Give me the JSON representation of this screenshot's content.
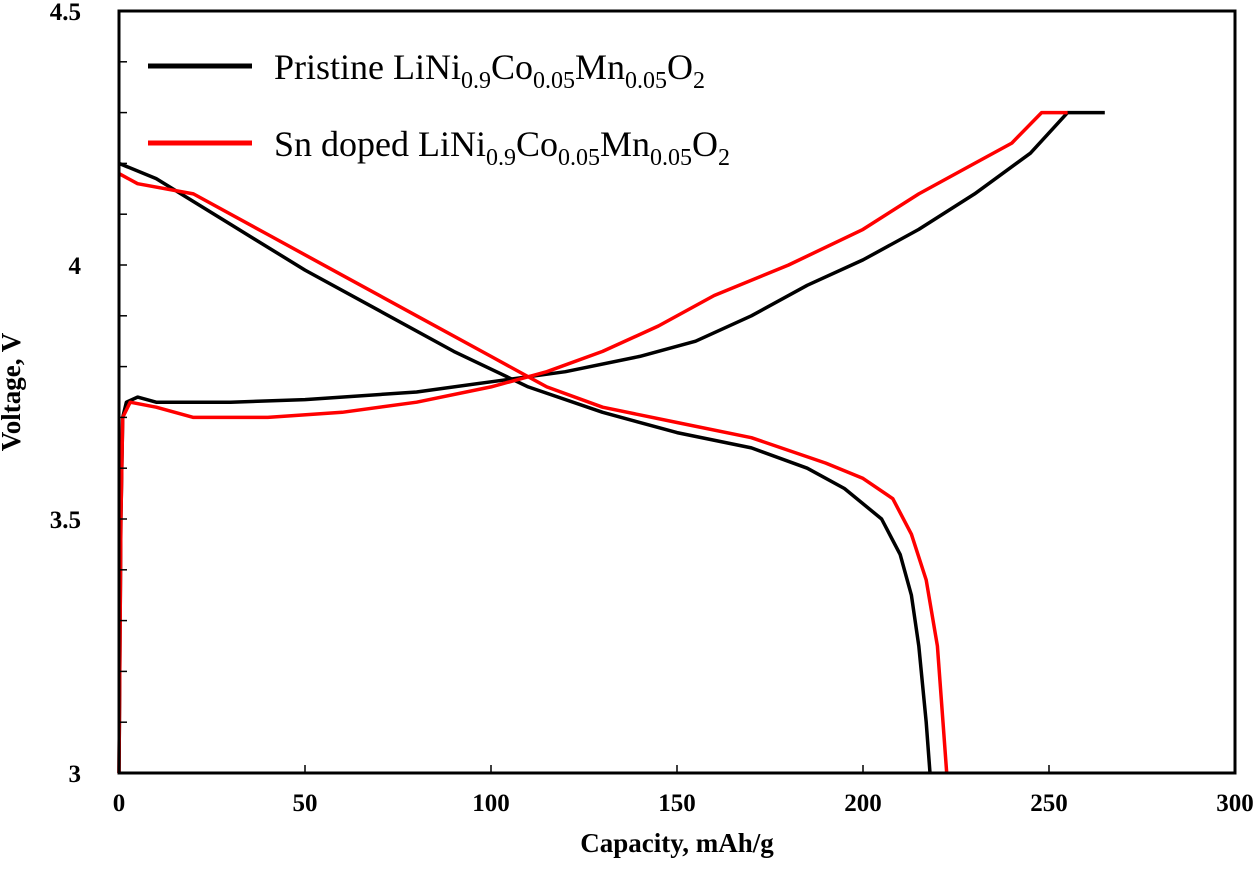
{
  "chart_data": {
    "type": "line",
    "title": "",
    "xlabel": "Capacity, mAh/g",
    "ylabel": "Voltage, V",
    "xlim": [
      0,
      300
    ],
    "ylim": [
      3,
      4.5
    ],
    "xticks": [
      "0",
      "50",
      "100",
      "150",
      "200",
      "250",
      "300"
    ],
    "yticks": [
      "3",
      "3.5",
      "4",
      "4.5"
    ],
    "grid": false,
    "legend_position": "top-left",
    "series": [
      {
        "name": "Pristine LiNi0.9Co0.05Mn0.05O2",
        "legend_parts": [
          [
            "Pristine LiNi",
            ""
          ],
          [
            "0.9",
            "sub"
          ],
          [
            "Co",
            ""
          ],
          [
            "0.05",
            "sub"
          ],
          [
            "Mn",
            ""
          ],
          [
            "0.05",
            "sub"
          ],
          [
            "O",
            ""
          ],
          [
            "2",
            "sub"
          ]
        ],
        "color": "#000000",
        "charge": [
          [
            0,
            3.0
          ],
          [
            0.5,
            3.5
          ],
          [
            1,
            3.7
          ],
          [
            2,
            3.73
          ],
          [
            5,
            3.74
          ],
          [
            10,
            3.73
          ],
          [
            30,
            3.73
          ],
          [
            50,
            3.735
          ],
          [
            80,
            3.75
          ],
          [
            100,
            3.77
          ],
          [
            120,
            3.79
          ],
          [
            140,
            3.82
          ],
          [
            155,
            3.85
          ],
          [
            170,
            3.9
          ],
          [
            185,
            3.96
          ],
          [
            200,
            4.01
          ],
          [
            215,
            4.07
          ],
          [
            230,
            4.14
          ],
          [
            245,
            4.22
          ],
          [
            255,
            4.3
          ],
          [
            265,
            4.3
          ]
        ],
        "discharge": [
          [
            0,
            4.2
          ],
          [
            10,
            4.17
          ],
          [
            30,
            4.08
          ],
          [
            50,
            3.99
          ],
          [
            70,
            3.91
          ],
          [
            90,
            3.83
          ],
          [
            110,
            3.76
          ],
          [
            130,
            3.71
          ],
          [
            150,
            3.67
          ],
          [
            170,
            3.64
          ],
          [
            185,
            3.6
          ],
          [
            195,
            3.56
          ],
          [
            205,
            3.5
          ],
          [
            210,
            3.43
          ],
          [
            213,
            3.35
          ],
          [
            215,
            3.25
          ],
          [
            217,
            3.1
          ],
          [
            218,
            3.0
          ]
        ]
      },
      {
        "name": "Sn doped LiNi0.9Co0.05Mn0.05O2",
        "legend_parts": [
          [
            "Sn doped LiNi",
            ""
          ],
          [
            "0.9",
            "sub"
          ],
          [
            "Co",
            ""
          ],
          [
            "0.05",
            "sub"
          ],
          [
            "Mn",
            ""
          ],
          [
            "0.05",
            "sub"
          ],
          [
            "O",
            ""
          ],
          [
            "2",
            "sub"
          ]
        ],
        "color": "#ff0000",
        "charge": [
          [
            0,
            3.0
          ],
          [
            0.5,
            3.5
          ],
          [
            1,
            3.7
          ],
          [
            3,
            3.73
          ],
          [
            10,
            3.72
          ],
          [
            20,
            3.7
          ],
          [
            40,
            3.7
          ],
          [
            60,
            3.71
          ],
          [
            80,
            3.73
          ],
          [
            100,
            3.76
          ],
          [
            115,
            3.79
          ],
          [
            130,
            3.83
          ],
          [
            145,
            3.88
          ],
          [
            160,
            3.94
          ],
          [
            180,
            4.0
          ],
          [
            200,
            4.07
          ],
          [
            215,
            4.14
          ],
          [
            230,
            4.2
          ],
          [
            240,
            4.24
          ],
          [
            248,
            4.3
          ],
          [
            255,
            4.3
          ]
        ],
        "discharge": [
          [
            0,
            4.18
          ],
          [
            5,
            4.16
          ],
          [
            20,
            4.14
          ],
          [
            40,
            4.06
          ],
          [
            60,
            3.98
          ],
          [
            80,
            3.9
          ],
          [
            100,
            3.82
          ],
          [
            115,
            3.76
          ],
          [
            130,
            3.72
          ],
          [
            150,
            3.69
          ],
          [
            170,
            3.66
          ],
          [
            190,
            3.61
          ],
          [
            200,
            3.58
          ],
          [
            208,
            3.54
          ],
          [
            213,
            3.47
          ],
          [
            217,
            3.38
          ],
          [
            220,
            3.25
          ],
          [
            221.5,
            3.1
          ],
          [
            222.5,
            3.0
          ]
        ]
      }
    ]
  }
}
